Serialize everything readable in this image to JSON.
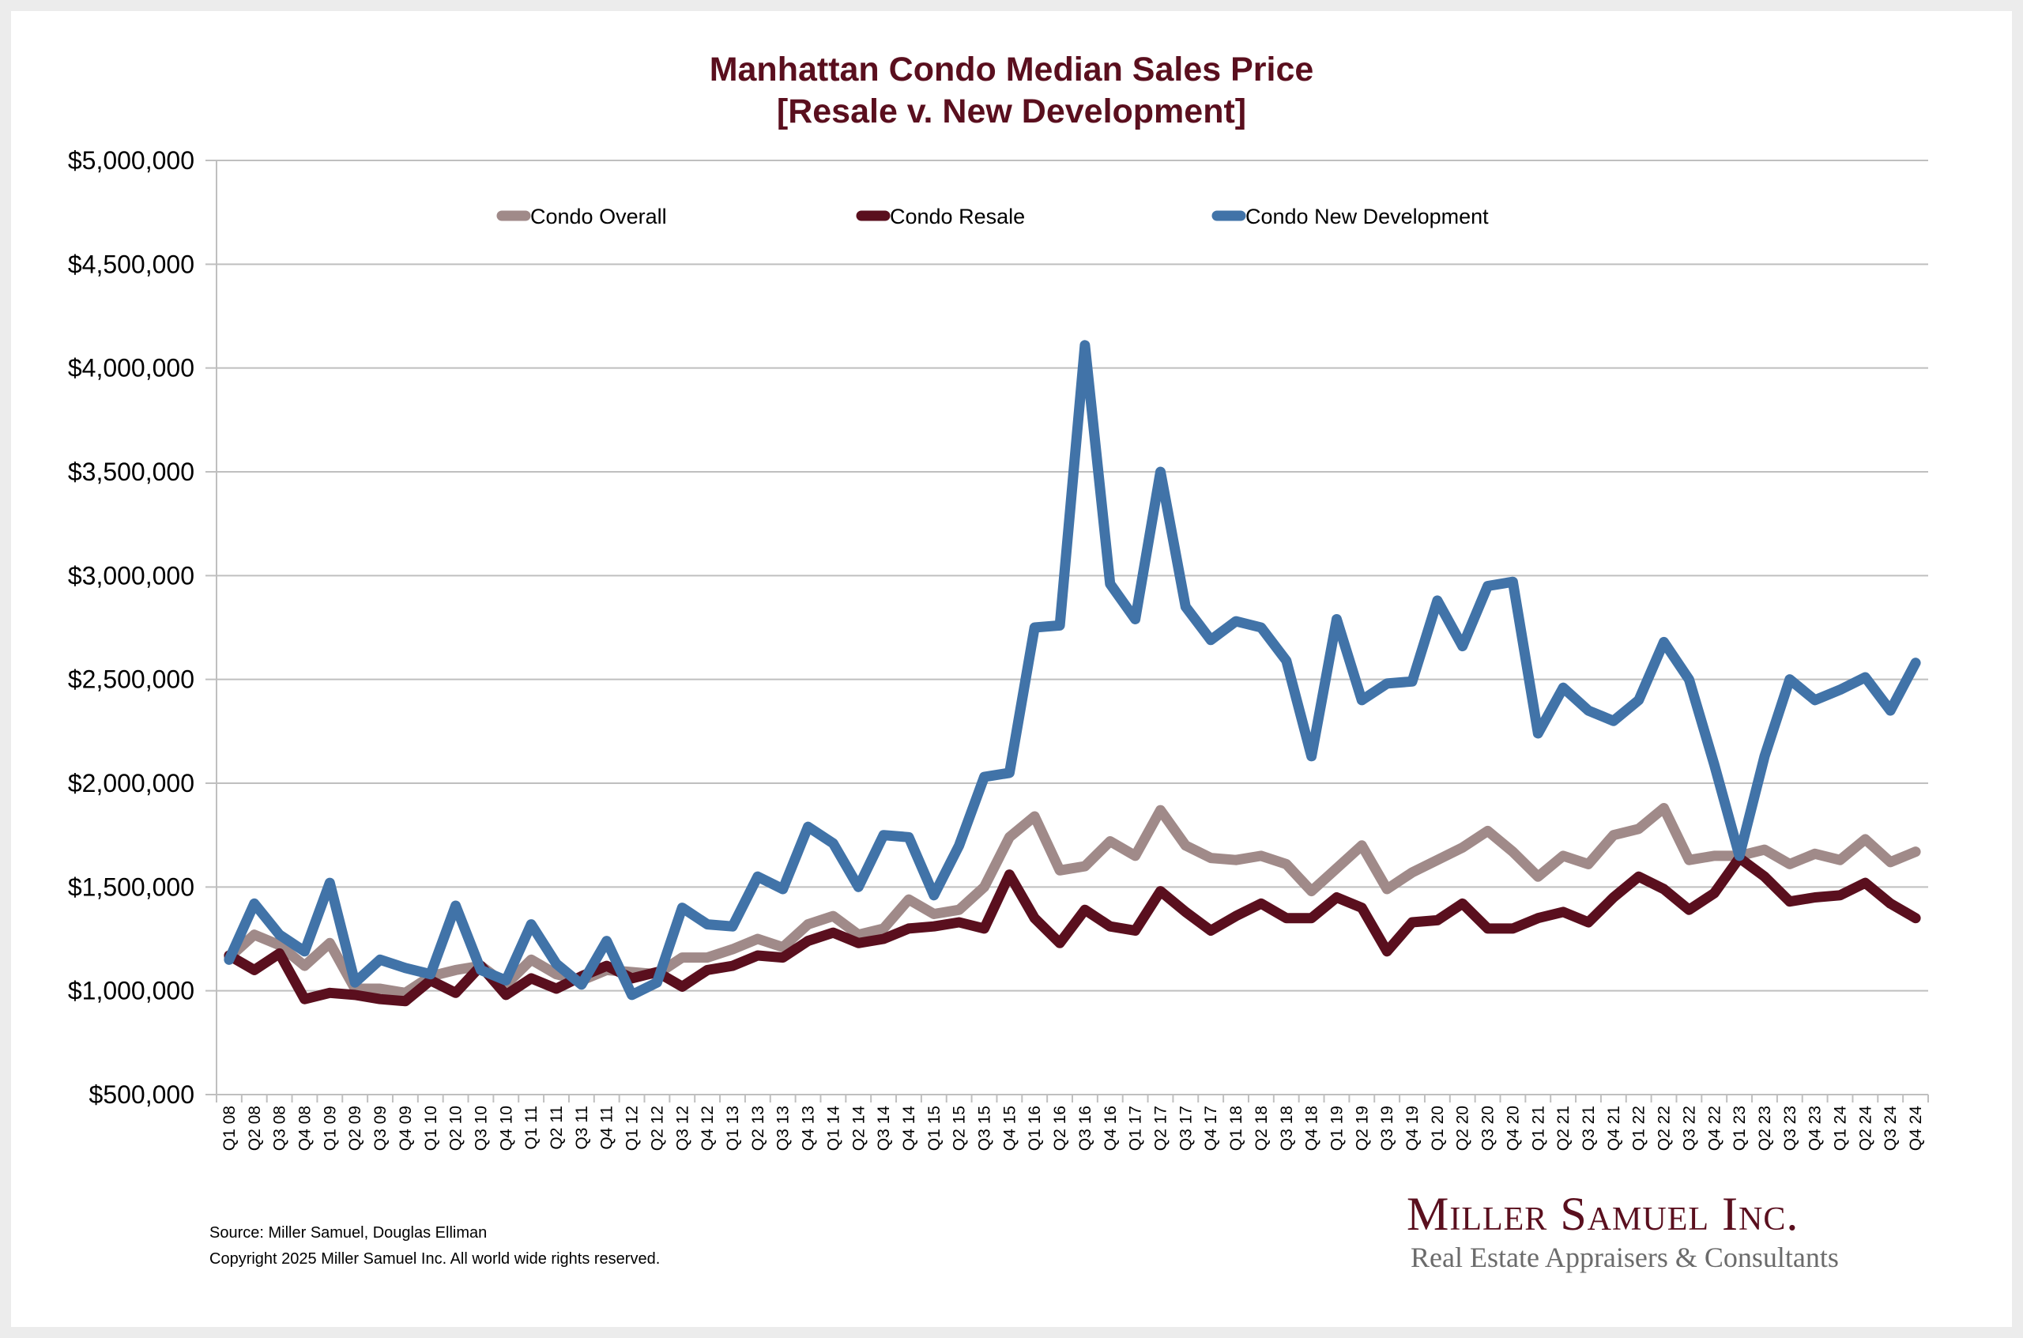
{
  "title_line1": "Manhattan Condo Median Sales Price",
  "title_line2": "[Resale v. New Development]",
  "footer": {
    "source": "Source: Miller Samuel, Douglas Elliman",
    "copyright": "Copyright 2025 Miller Samuel Inc.  All world wide rights reserved."
  },
  "logo": {
    "name": "Miller Samuel Inc.",
    "tagline": "Real Estate Appraisers & Consultants"
  },
  "colors": {
    "title": "#5a0f1e",
    "overall": "#a08a89",
    "resale": "#5a0f1e",
    "new_development": "#4173a8",
    "grid": "#bfbfbf"
  },
  "chart_data": {
    "type": "line",
    "title": "Manhattan Condo Median Sales Price [Resale v. New Development]",
    "xlabel": "",
    "ylabel": "",
    "ylim": [
      500000,
      5000000
    ],
    "yticks": [
      500000,
      1000000,
      1500000,
      2000000,
      2500000,
      3000000,
      3500000,
      4000000,
      4500000,
      5000000
    ],
    "ytick_labels": [
      "$500,000",
      "$1,000,000",
      "$1,500,000",
      "$2,000,000",
      "$2,500,000",
      "$3,000,000",
      "$3,500,000",
      "$4,000,000",
      "$4,500,000",
      "$5,000,000"
    ],
    "grid": true,
    "legend_position": "top",
    "categories": [
      "Q1 08",
      "Q2 08",
      "Q3 08",
      "Q4 08",
      "Q1 09",
      "Q2 09",
      "Q3 09",
      "Q4 09",
      "Q1 10",
      "Q2 10",
      "Q3 10",
      "Q4 10",
      "Q1 11",
      "Q2 11",
      "Q3 11",
      "Q4 11",
      "Q1 12",
      "Q2 12",
      "Q3 12",
      "Q4 12",
      "Q1 13",
      "Q2 13",
      "Q3 13",
      "Q4 13",
      "Q1 14",
      "Q2 14",
      "Q3 14",
      "Q4 14",
      "Q1 15",
      "Q2 15",
      "Q3 15",
      "Q4 15",
      "Q1 16",
      "Q2 16",
      "Q3 16",
      "Q4 16",
      "Q1 17",
      "Q2 17",
      "Q3 17",
      "Q4 17",
      "Q1 18",
      "Q2 18",
      "Q3 18",
      "Q4 18",
      "Q1 19",
      "Q2 19",
      "Q3 19",
      "Q4 19",
      "Q1 20",
      "Q2 20",
      "Q3 20",
      "Q4 20",
      "Q1 21",
      "Q2 21",
      "Q3 21",
      "Q4 21",
      "Q1 22",
      "Q2 22",
      "Q3 22",
      "Q4 22",
      "Q1 23",
      "Q2 23",
      "Q3 23",
      "Q4 23",
      "Q1 24",
      "Q2 24",
      "Q3 24",
      "Q4 24"
    ],
    "series": [
      {
        "name": "Condo Overall",
        "color": "#a08a89",
        "values": [
          1160000,
          1270000,
          1220000,
          1120000,
          1230000,
          1010000,
          1010000,
          990000,
          1070000,
          1100000,
          1120000,
          1030000,
          1150000,
          1080000,
          1050000,
          1100000,
          1090000,
          1080000,
          1160000,
          1160000,
          1200000,
          1250000,
          1210000,
          1320000,
          1360000,
          1270000,
          1300000,
          1440000,
          1370000,
          1390000,
          1500000,
          1740000,
          1840000,
          1580000,
          1600000,
          1720000,
          1650000,
          1870000,
          1700000,
          1640000,
          1630000,
          1650000,
          1610000,
          1480000,
          1590000,
          1700000,
          1490000,
          1570000,
          1630000,
          1690000,
          1770000,
          1670000,
          1550000,
          1650000,
          1610000,
          1750000,
          1780000,
          1880000,
          1630000,
          1650000,
          1650000,
          1680000,
          1610000,
          1660000,
          1630000,
          1730000,
          1620000,
          1670000
        ]
      },
      {
        "name": "Condo Resale",
        "color": "#5a0f1e",
        "values": [
          1170000,
          1100000,
          1180000,
          960000,
          990000,
          980000,
          960000,
          950000,
          1050000,
          990000,
          1120000,
          980000,
          1060000,
          1010000,
          1070000,
          1120000,
          1060000,
          1090000,
          1020000,
          1100000,
          1120000,
          1170000,
          1160000,
          1240000,
          1280000,
          1230000,
          1250000,
          1300000,
          1310000,
          1330000,
          1300000,
          1560000,
          1350000,
          1230000,
          1390000,
          1310000,
          1290000,
          1480000,
          1380000,
          1290000,
          1360000,
          1420000,
          1350000,
          1350000,
          1450000,
          1400000,
          1190000,
          1330000,
          1340000,
          1420000,
          1300000,
          1300000,
          1350000,
          1380000,
          1330000,
          1450000,
          1550000,
          1490000,
          1390000,
          1470000,
          1640000,
          1550000,
          1430000,
          1450000,
          1460000,
          1520000,
          1420000,
          1350000
        ]
      },
      {
        "name": "Condo New Development",
        "color": "#4173a8",
        "values": [
          1150000,
          1420000,
          1270000,
          1190000,
          1520000,
          1040000,
          1150000,
          1110000,
          1080000,
          1410000,
          1100000,
          1050000,
          1320000,
          1130000,
          1030000,
          1240000,
          980000,
          1040000,
          1400000,
          1320000,
          1310000,
          1550000,
          1490000,
          1790000,
          1710000,
          1500000,
          1750000,
          1740000,
          1460000,
          1700000,
          2030000,
          2050000,
          2750000,
          2760000,
          4110000,
          2960000,
          2790000,
          3500000,
          2850000,
          2690000,
          2780000,
          2750000,
          2590000,
          2130000,
          2790000,
          2400000,
          2480000,
          2490000,
          2880000,
          2660000,
          2950000,
          2970000,
          2240000,
          2460000,
          2350000,
          2300000,
          2400000,
          2680000,
          2500000,
          2090000,
          1650000,
          2130000,
          2500000,
          2400000,
          2450000,
          2510000,
          2350000,
          2580000
        ]
      }
    ]
  }
}
